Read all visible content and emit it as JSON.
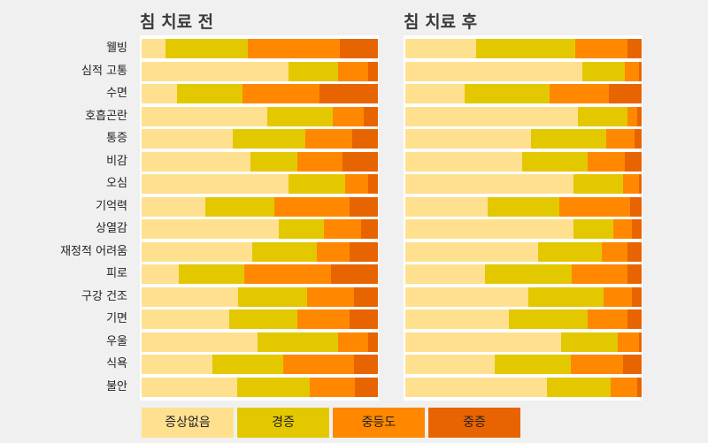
{
  "chart_data": {
    "type": "bar",
    "stacked": true,
    "orientation": "horizontal",
    "normalized_percent": true,
    "categories": [
      "웰빙",
      "심적 고통",
      "수면",
      "호흡곤란",
      "통증",
      "비감",
      "오심",
      "기억력",
      "상열감",
      "재정적 어려움",
      "피로",
      "구강 건조",
      "기면",
      "우울",
      "식욕",
      "불안"
    ],
    "series_names": [
      "증상없음",
      "경증",
      "중등도",
      "중증"
    ],
    "colors": [
      "#ffe08f",
      "#e3c800",
      "#ff8800",
      "#e86400"
    ],
    "panels": [
      {
        "title": "침 치료 전",
        "values": [
          [
            10,
            35,
            39,
            16
          ],
          [
            62,
            21,
            13,
            4
          ],
          [
            15,
            28,
            33,
            25
          ],
          [
            53,
            28,
            13,
            6
          ],
          [
            39,
            31,
            20,
            11
          ],
          [
            46,
            20,
            19,
            15
          ],
          [
            62,
            24,
            10,
            4
          ],
          [
            27,
            29,
            32,
            12
          ],
          [
            58,
            19,
            16,
            7
          ],
          [
            47,
            27,
            14,
            12
          ],
          [
            16,
            28,
            37,
            20
          ],
          [
            41,
            29,
            20,
            10
          ],
          [
            37,
            29,
            22,
            12
          ],
          [
            49,
            34,
            13,
            4
          ],
          [
            30,
            30,
            30,
            10
          ],
          [
            41,
            31,
            19,
            10
          ]
        ]
      },
      {
        "title": "침 치료 후",
        "values": [
          [
            30,
            42,
            22,
            6
          ],
          [
            75,
            18,
            6,
            1
          ],
          [
            25,
            36,
            25,
            14
          ],
          [
            73,
            21,
            4,
            2
          ],
          [
            53,
            32,
            12,
            3
          ],
          [
            50,
            28,
            16,
            7
          ],
          [
            71,
            21,
            7,
            1
          ],
          [
            35,
            30,
            30,
            5
          ],
          [
            71,
            17,
            8,
            4
          ],
          [
            56,
            27,
            11,
            6
          ],
          [
            34,
            37,
            24,
            6
          ],
          [
            52,
            32,
            12,
            4
          ],
          [
            44,
            33,
            17,
            6
          ],
          [
            66,
            24,
            9,
            1
          ],
          [
            38,
            32,
            22,
            8
          ],
          [
            60,
            27,
            11,
            2
          ]
        ]
      }
    ],
    "legend_position": "bottom-left",
    "grid": false
  }
}
